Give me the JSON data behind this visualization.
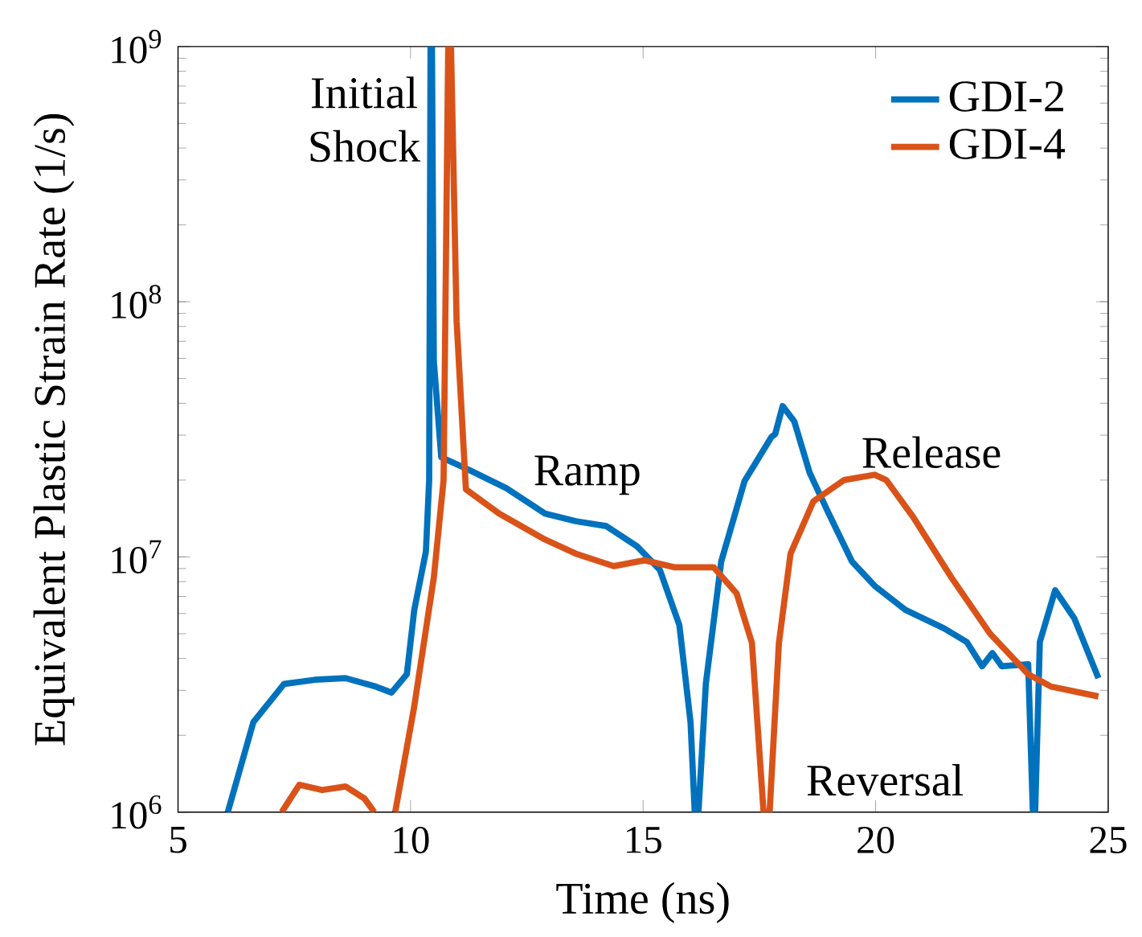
{
  "chart_data": {
    "type": "line",
    "xlabel": "Time (ns)",
    "ylabel": "Equivalent Plastic Strain Rate (1/s)",
    "xlim": [
      5,
      25
    ],
    "xticks": [
      5,
      10,
      15,
      20,
      25
    ],
    "ylim": [
      1000000,
      1000000000
    ],
    "log": "y",
    "yticks": [
      {
        "value": 1000000,
        "label": "10$^{6}$"
      },
      {
        "value": 10000000,
        "label": "10$^{7}$"
      },
      {
        "value": 100000000,
        "label": "10$^{8}$"
      },
      {
        "value": 1000000000,
        "label": "10$^{9}$"
      }
    ],
    "grid": false,
    "legend": "top right",
    "marker": "none",
    "line_style": "solid",
    "series": [
      {
        "name": "GDI-2",
        "color": "#0072bd",
        "x": [
          6.07,
          6.62,
          7.28,
          7.94,
          8.6,
          9.26,
          9.59,
          9.92,
          10.08,
          10.33,
          10.4,
          10.43,
          10.46,
          10.5,
          10.66,
          11.24,
          12.06,
          12.89,
          13.55,
          14.21,
          14.87,
          15.36,
          15.78,
          16.02,
          16.11,
          16.19,
          16.35,
          16.68,
          17.18,
          17.76,
          17.84,
          18.0,
          18.25,
          18.58,
          18.99,
          19.49,
          19.98,
          20.64,
          21.47,
          21.96,
          22.29,
          22.51,
          22.71,
          23.28,
          23.38,
          23.43,
          23.53,
          23.86,
          24.27,
          24.79
        ],
        "values": [
          1000000,
          2250000,
          3180000,
          3300000,
          3350000,
          3100000,
          2940000,
          3470000,
          6200000,
          10500000,
          20000000,
          1000000000,
          1000000000,
          58500000,
          24600000,
          22000000,
          18600000,
          14800000,
          13800000,
          13200000,
          11000000,
          8900000,
          5400000,
          2250000,
          1000000,
          1000000,
          3200000,
          9600000,
          19800000,
          29500000,
          30300000,
          39000000,
          34000000,
          21400000,
          14800000,
          9600000,
          7700000,
          6200000,
          5250000,
          4640000,
          3730000,
          4200000,
          3730000,
          3800000,
          1000000,
          1000000,
          4640000,
          7400000,
          5750000,
          3350000
        ]
      },
      {
        "name": "GDI-4",
        "color": "#d95319",
        "x": [
          7.23,
          7.61,
          8.1,
          8.6,
          9.01,
          9.22,
          9.45,
          9.67,
          10.08,
          10.5,
          10.71,
          10.81,
          10.87,
          10.99,
          11.19,
          11.9,
          12.89,
          13.55,
          14.37,
          15.03,
          15.69,
          16.52,
          17.01,
          17.34,
          17.59,
          17.72,
          17.92,
          18.17,
          18.66,
          19.32,
          19.98,
          20.23,
          20.81,
          21.63,
          22.46,
          23.28,
          23.78,
          24.79
        ],
        "values": [
          1000000,
          1280000,
          1220000,
          1260000,
          1130000,
          1000000,
          null,
          1000000,
          2600000,
          8300000,
          20000000,
          1000000000,
          1000000000,
          84000000,
          18400000,
          14800000,
          11700000,
          10300000,
          9200000,
          9700000,
          9100000,
          9100000,
          7200000,
          4600000,
          1000000,
          1000000,
          4600000,
          10300000,
          16500000,
          20000000,
          21000000,
          20000000,
          14300000,
          8300000,
          5000000,
          3470000,
          3100000,
          2840000
        ]
      }
    ],
    "annotations": [
      "Initial Shock",
      "Ramp",
      "Reversal",
      "Release"
    ]
  }
}
